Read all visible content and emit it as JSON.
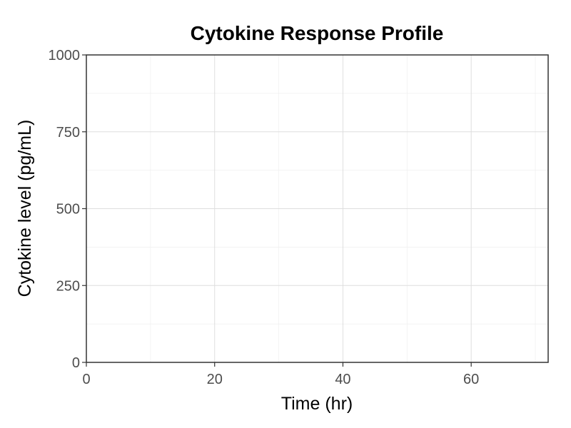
{
  "chart_data": {
    "type": "line",
    "title": "Cytokine Response Profile",
    "xlabel": "Time (hr)",
    "ylabel": "Cytokine level (pg/mL)",
    "xlim": [
      0,
      72
    ],
    "ylim": [
      0,
      1000
    ],
    "x_ticks": [
      0,
      20,
      40,
      60
    ],
    "x_tick_labels": [
      "0",
      "20",
      "40",
      "60"
    ],
    "x_minor_ticks": [
      10,
      30,
      50,
      70
    ],
    "y_ticks": [
      0,
      250,
      500,
      750,
      1000
    ],
    "y_tick_labels": [
      "0",
      "250",
      "500",
      "750",
      "1000"
    ],
    "y_minor_ticks": [
      125,
      375,
      625,
      875
    ],
    "grid": true,
    "series": [],
    "colors": {
      "panel_border": "#333333",
      "grid_major": "#dedede",
      "grid_minor": "#efefef",
      "tick_text": "#4d4d4d",
      "text": "#000000"
    }
  }
}
